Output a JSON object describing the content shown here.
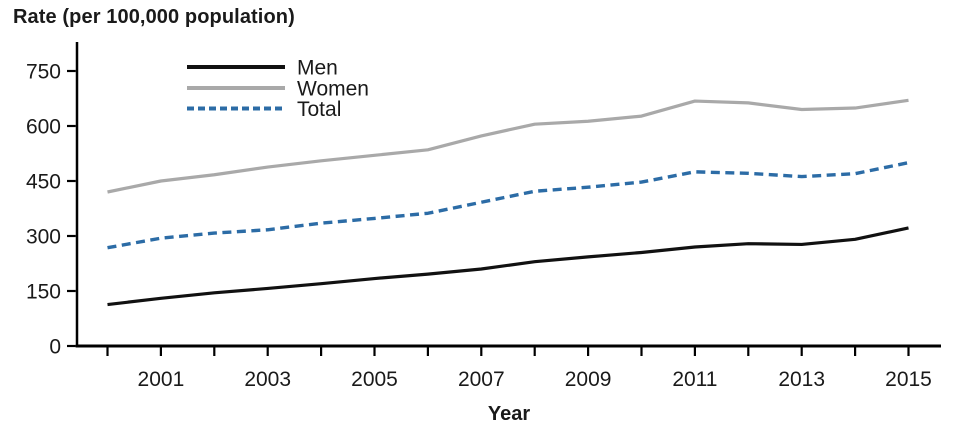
{
  "chart_data": {
    "type": "line",
    "title": "Rate (per 100,000 population)",
    "xlabel": "Year",
    "ylabel": "Rate (per 100,000 population)",
    "x": [
      2000,
      2001,
      2002,
      2003,
      2004,
      2005,
      2006,
      2007,
      2008,
      2009,
      2010,
      2011,
      2012,
      2013,
      2014,
      2015
    ],
    "series": [
      {
        "name": "Men",
        "color": "#111111",
        "dash": "solid",
        "values": [
          113,
          130,
          145,
          157,
          170,
          184,
          196,
          210,
          230,
          243,
          255,
          270,
          279,
          277,
          291,
          322
        ]
      },
      {
        "name": "Women",
        "color": "#a9a9a9",
        "dash": "solid",
        "values": [
          420,
          450,
          467,
          488,
          505,
          520,
          535,
          573,
          605,
          613,
          627,
          668,
          663,
          645,
          649,
          670
        ]
      },
      {
        "name": "Total",
        "color": "#2c6ca6",
        "dash": "dashed",
        "values": [
          268,
          294,
          308,
          317,
          335,
          348,
          362,
          392,
          422,
          433,
          447,
          475,
          471,
          462,
          470,
          500
        ]
      }
    ],
    "ylim": [
      0,
      750
    ],
    "yticks": [
      0,
      150,
      300,
      450,
      600,
      750
    ],
    "xtick_labels": [
      "2001",
      "2003",
      "2005",
      "2007",
      "2009",
      "2011",
      "2013",
      "2015"
    ],
    "legend": {
      "position": "top-left-inside",
      "entries": [
        "Men",
        "Women",
        "Total"
      ]
    },
    "grid": false,
    "axis_color": "#000000",
    "text_color": "#1a1a1a"
  }
}
